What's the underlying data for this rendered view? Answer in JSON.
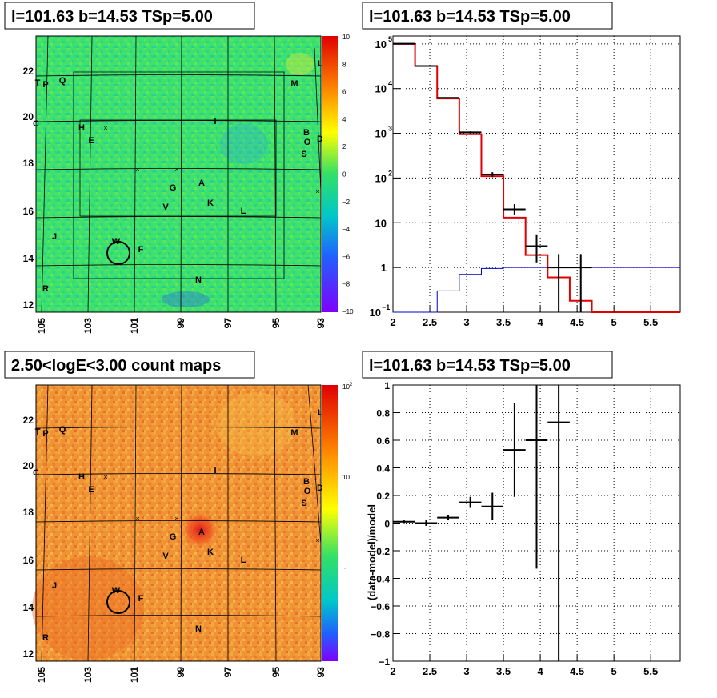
{
  "panels": {
    "tl_title": "l=101.63 b=14.53 TSp=5.00",
    "tr_title": "l=101.63 b=14.53 TSp=5.00",
    "bl_title": "2.50<logE<3.00 count maps",
    "br_title": "l=101.63 b=14.53 TSp=5.00"
  },
  "maps": {
    "x_ticks": [
      "105",
      "103",
      "101",
      "99",
      "97",
      "95",
      "93"
    ],
    "y_ticks": [
      "22",
      "20",
      "18",
      "16",
      "14",
      "12"
    ],
    "residual_colorbar": [
      "10",
      "8",
      "6",
      "4",
      "2",
      "0",
      "−2",
      "−4",
      "−6",
      "−8",
      "−10"
    ],
    "count_colorbar": [
      "10",
      "10",
      "1"
    ],
    "count_colorbar_exp": "2",
    "source_labels": [
      "U",
      "T",
      "P",
      "Q",
      "M",
      "C",
      "H",
      "I",
      "B",
      "O",
      "D",
      "E",
      "S",
      "A",
      "G",
      "K",
      "V",
      "L",
      "J",
      "W",
      "F",
      "N",
      "R"
    ],
    "colors": {
      "residual_bg": "#33e066",
      "count_bg": "#f08a30",
      "hotspot": "#e02020"
    }
  },
  "chart_data": [
    {
      "type": "line",
      "title": "",
      "xlabel": "",
      "ylabel": "",
      "ylog": true,
      "xlim": [
        2,
        5.9
      ],
      "ylim": [
        0.1,
        150000
      ],
      "x_ticks": [
        "2",
        "2.5",
        "3",
        "3.5",
        "4",
        "4.5",
        "5",
        "5.5"
      ],
      "y_ticks": {
        "base": [
          "10",
          "10",
          "10",
          "10",
          "10",
          "1",
          "10"
        ],
        "exp": [
          "5",
          "4",
          "3",
          "2",
          "",
          "",
          ""
        ]
      },
      "y_ticks_extra": [
        "10",
        "−1"
      ],
      "series": [
        {
          "style": "red-step",
          "edges": [
            2.0,
            2.3,
            2.6,
            2.9,
            3.2,
            3.5,
            3.8,
            4.1,
            4.4,
            4.7,
            5.9
          ],
          "values": [
            100000,
            32000,
            6000,
            950,
            110,
            13,
            1.9,
            0.6,
            0.18,
            0.1
          ]
        },
        {
          "style": "blue-step",
          "edges": [
            2.0,
            2.3,
            2.6,
            2.9,
            3.2,
            3.5,
            3.8,
            4.1,
            4.4,
            4.7,
            5.9
          ],
          "values": [
            0.05,
            0.08,
            0.3,
            0.7,
            0.95,
            1.0,
            1.0,
            1.0,
            1.0,
            1.0
          ]
        },
        {
          "style": "data",
          "points": [
            {
              "x": 2.15,
              "xerr": 0.15,
              "y": 101000,
              "ylo": 100000,
              "yhi": 102000
            },
            {
              "x": 2.45,
              "xerr": 0.15,
              "y": 32000,
              "ylo": 31700,
              "yhi": 32300
            },
            {
              "x": 2.75,
              "xerr": 0.15,
              "y": 6200,
              "ylo": 6100,
              "yhi": 6300
            },
            {
              "x": 3.05,
              "xerr": 0.15,
              "y": 1050,
              "ylo": 1000,
              "yhi": 1100
            },
            {
              "x": 3.35,
              "xerr": 0.15,
              "y": 120,
              "ylo": 105,
              "yhi": 135
            },
            {
              "x": 3.65,
              "xerr": 0.15,
              "y": 20,
              "ylo": 15,
              "yhi": 26
            },
            {
              "x": 3.95,
              "xerr": 0.15,
              "y": 3,
              "ylo": 1.3,
              "yhi": 5.5
            },
            {
              "x": 4.25,
              "xerr": 0.15,
              "y": 1,
              "ylo": 0.1,
              "yhi": 2
            },
            {
              "x": 4.55,
              "xerr": 0.15,
              "y": 1,
              "ylo": 0.1,
              "yhi": 2
            }
          ]
        }
      ]
    },
    {
      "type": "scatter",
      "title": "",
      "xlabel": "",
      "ylabel": "(data-model)/model",
      "xlim": [
        2,
        5.9
      ],
      "ylim": [
        -1,
        1
      ],
      "x_ticks": [
        "2",
        "2.5",
        "3",
        "3.5",
        "4",
        "4.5",
        "5",
        "5.5"
      ],
      "y_ticks": [
        "1",
        "0.8",
        "0.6",
        "0.4",
        "0.2",
        "0",
        "−0.2",
        "−0.4",
        "−0.6",
        "−0.8",
        "−1"
      ],
      "points": [
        {
          "x": 2.15,
          "xerr": 0.15,
          "y": 0.01,
          "ylo": 0.0,
          "yhi": 0.02
        },
        {
          "x": 2.45,
          "xerr": 0.15,
          "y": 0.0,
          "ylo": -0.02,
          "yhi": 0.02
        },
        {
          "x": 2.75,
          "xerr": 0.15,
          "y": 0.04,
          "ylo": 0.02,
          "yhi": 0.06
        },
        {
          "x": 3.05,
          "xerr": 0.15,
          "y": 0.15,
          "ylo": 0.11,
          "yhi": 0.19
        },
        {
          "x": 3.35,
          "xerr": 0.15,
          "y": 0.12,
          "ylo": 0.02,
          "yhi": 0.22
        },
        {
          "x": 3.65,
          "xerr": 0.15,
          "y": 0.53,
          "ylo": 0.19,
          "yhi": 0.87
        },
        {
          "x": 3.95,
          "xerr": 0.15,
          "y": 0.6,
          "ylo": -0.33,
          "yhi": 1.0
        },
        {
          "x": 4.25,
          "xerr": 0.15,
          "y": 0.73,
          "ylo": -1.0,
          "yhi": 1.0
        }
      ]
    }
  ]
}
